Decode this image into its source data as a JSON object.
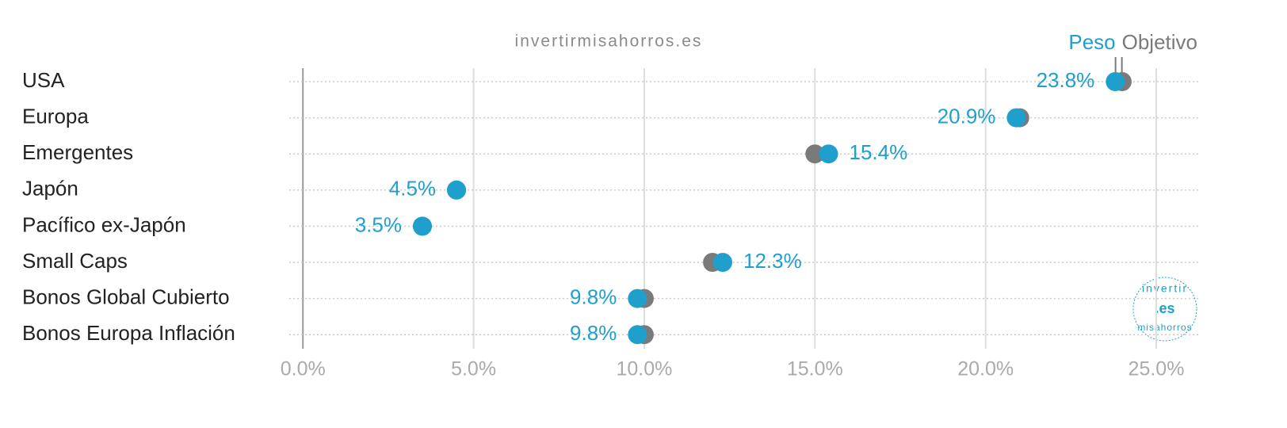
{
  "chart_data": {
    "type": "dot",
    "subtitle": "invertirmisahorros.es",
    "categories": [
      "USA",
      "Europa",
      "Emergentes",
      "Japón",
      "Pacífico ex-Japón",
      "Small Caps",
      "Bonos Global Cubierto",
      "Bonos Europa Inflación"
    ],
    "series": [
      {
        "name": "Objetivo",
        "color": "#7a7a7a",
        "values": [
          24,
          21,
          15,
          4.5,
          3.5,
          12,
          10,
          10
        ]
      },
      {
        "name": "Peso",
        "color": "#1fa0cc",
        "values": [
          23.8,
          20.9,
          15.4,
          4.5,
          3.5,
          12.3,
          9.8,
          9.8
        ],
        "value_labels": [
          "23.8%",
          "20.9%",
          "15.4%",
          "4.5%",
          "3.5%",
          "12.3%",
          "9.8%",
          "9.8%"
        ]
      }
    ],
    "xlim": [
      -0.4,
      26.3
    ],
    "xticks": [
      {
        "value": 0,
        "label": "0.0%"
      },
      {
        "value": 5,
        "label": "5.0%"
      },
      {
        "value": 10,
        "label": "10.0%"
      },
      {
        "value": 15,
        "label": "15.0%"
      },
      {
        "value": 20,
        "label": "20.0%"
      },
      {
        "value": 25,
        "label": "25.0%"
      }
    ],
    "grid": true,
    "logo": {
      "top": "invertir",
      "center": ".es",
      "bottom": "misahorros"
    }
  }
}
